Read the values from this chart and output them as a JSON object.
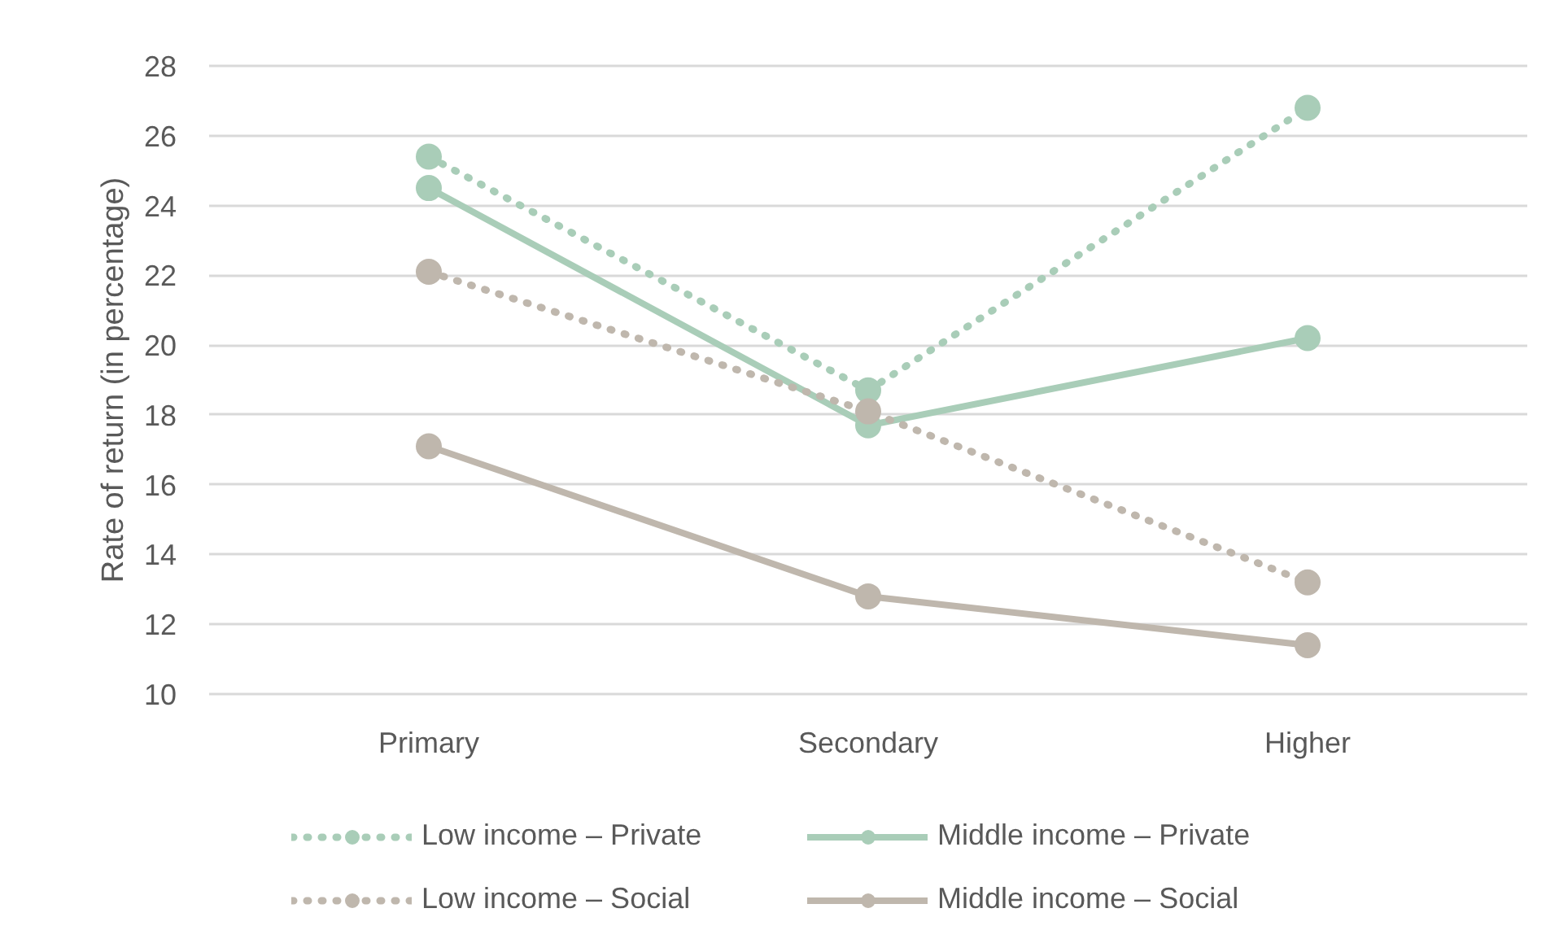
{
  "chart_data": {
    "type": "line",
    "ylabel": "Rate of return (in percentage)",
    "categories": [
      "Primary",
      "Secondary",
      "Higher"
    ],
    "ylim": [
      10,
      28
    ],
    "yticks": [
      10,
      12,
      14,
      16,
      18,
      20,
      22,
      24,
      26,
      28
    ],
    "grid": "y",
    "legend": "bottom",
    "marker": "circle",
    "series": [
      {
        "name": "Low income – Private",
        "color": "#a9cdb8",
        "line_style": "dotted",
        "values": [
          25.4,
          18.7,
          26.8
        ]
      },
      {
        "name": "Middle income – Private",
        "color": "#a9cdb8",
        "line_style": "solid",
        "values": [
          24.5,
          17.7,
          20.2
        ]
      },
      {
        "name": "Low income – Social",
        "color": "#bfb7ad",
        "line_style": "dotted",
        "values": [
          22.1,
          18.1,
          13.2
        ]
      },
      {
        "name": "Middle income – Social",
        "color": "#bfb7ad",
        "line_style": "solid",
        "values": [
          17.1,
          12.8,
          11.4
        ]
      }
    ]
  }
}
